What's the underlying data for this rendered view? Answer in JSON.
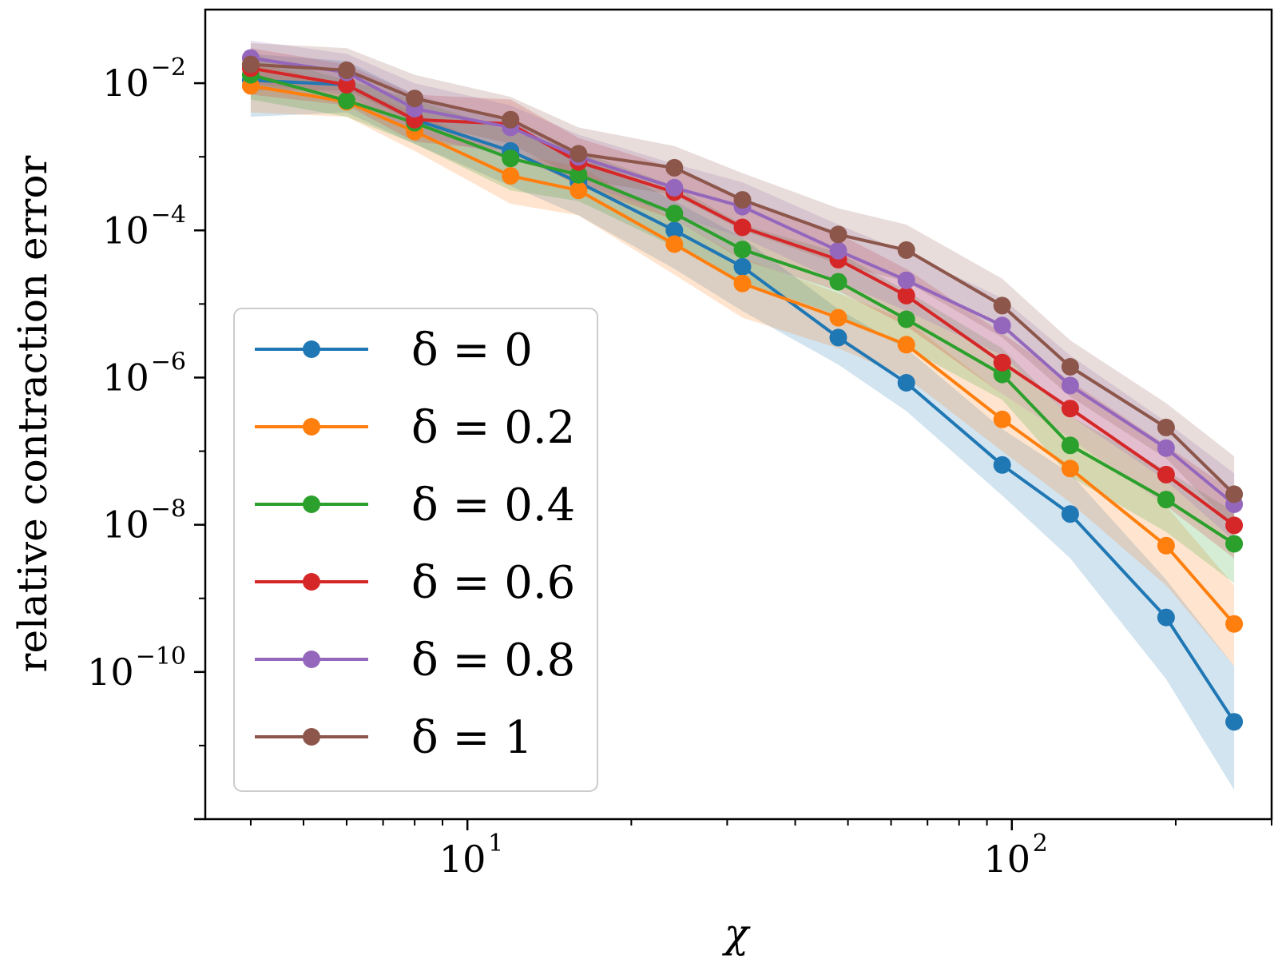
{
  "chart_data": {
    "type": "line",
    "xscale": "log",
    "yscale": "log",
    "xlabel": "χ",
    "ylabel": "relative contraction error",
    "xlim": [
      3.3,
      300
    ],
    "ylim": [
      1e-12,
      0.1
    ],
    "x": [
      4,
      6,
      8,
      12,
      16,
      24,
      32,
      48,
      64,
      96,
      128,
      192,
      256
    ],
    "x_ticks": [
      {
        "value": 10,
        "base": "10",
        "exp": "1"
      },
      {
        "value": 100,
        "base": "10",
        "exp": "2"
      }
    ],
    "y_ticks": [
      {
        "value": 0.01,
        "base": "10",
        "exp": "−2"
      },
      {
        "value": 0.0001,
        "base": "10",
        "exp": "−4"
      },
      {
        "value": 1e-06,
        "base": "10",
        "exp": "−6"
      },
      {
        "value": 1e-08,
        "base": "10",
        "exp": "−8"
      },
      {
        "value": 1e-10,
        "base": "10",
        "exp": "−10"
      }
    ],
    "legend_position": "lower-left",
    "series": [
      {
        "name": "δ = 0",
        "color": "#1f77b4",
        "values": [
          0.011,
          0.0095,
          0.0032,
          0.0012,
          0.00045,
          0.0001,
          3.2e-05,
          3.5e-06,
          8.5e-07,
          6.5e-08,
          1.4e-08,
          5.5e-10,
          2.1e-11
        ],
        "lower": [
          0.0035,
          0.004,
          0.0015,
          0.0004,
          0.00016,
          3e-05,
          8e-06,
          1.5e-06,
          3.5e-07,
          2.5e-08,
          3.5e-09,
          8e-11,
          2.5e-12
        ],
        "upper": [
          0.025,
          0.02,
          0.007,
          0.003,
          0.0012,
          0.00025,
          8e-05,
          8.5e-06,
          2.5e-06,
          2e-07,
          5e-08,
          1.8e-09,
          1.2e-10
        ]
      },
      {
        "name": "δ = 0.2",
        "color": "#ff7f0e",
        "values": [
          0.0092,
          0.0056,
          0.0022,
          0.00055,
          0.00035,
          6.5e-05,
          1.9e-05,
          6.5e-06,
          2.8e-06,
          2.7e-07,
          5.8e-08,
          5.2e-09,
          4.5e-10
        ],
        "lower": [
          0.004,
          0.0035,
          0.0012,
          0.00023,
          0.00016,
          2.5e-05,
          6.5e-06,
          2.5e-06,
          1e-06,
          1e-07,
          2e-08,
          1.5e-09,
          1.2e-10
        ],
        "upper": [
          0.02,
          0.009,
          0.004,
          0.0011,
          0.00075,
          0.00014,
          4.2e-05,
          1.4e-05,
          6e-06,
          6e-07,
          1.5e-07,
          1.8e-08,
          1.5e-09
        ]
      },
      {
        "name": "δ = 0.4",
        "color": "#2ca02c",
        "values": [
          0.013,
          0.0058,
          0.0029,
          0.00095,
          0.00057,
          0.00017,
          5.5e-05,
          2e-05,
          6.2e-06,
          1.1e-06,
          1.2e-07,
          2.2e-08,
          5.5e-09
        ],
        "lower": [
          0.006,
          0.0035,
          0.0015,
          0.00035,
          0.00025,
          6e-05,
          2e-05,
          7e-06,
          2.5e-06,
          5e-07,
          4.5e-08,
          8e-09,
          1.6e-09
        ],
        "upper": [
          0.025,
          0.011,
          0.006,
          0.0022,
          0.0012,
          0.0004,
          0.00012,
          5e-05,
          1.5e-05,
          2.5e-06,
          3e-07,
          5.5e-08,
          1.5e-08
        ]
      },
      {
        "name": "δ = 0.6",
        "color": "#d62728",
        "values": [
          0.016,
          0.0095,
          0.0032,
          0.0028,
          0.00085,
          0.00033,
          0.00011,
          4e-05,
          1.3e-05,
          1.6e-06,
          3.8e-07,
          4.8e-08,
          9.8e-09
        ],
        "lower": [
          0.007,
          0.005,
          0.0016,
          0.0012,
          0.0004,
          0.00014,
          4e-05,
          1.5e-05,
          5e-06,
          6e-07,
          1.5e-07,
          1.8e-08,
          3.5e-09
        ],
        "upper": [
          0.03,
          0.018,
          0.007,
          0.006,
          0.0018,
          0.0007,
          0.00025,
          9e-05,
          3e-05,
          4e-06,
          9e-07,
          1.2e-07,
          2.8e-08
        ]
      },
      {
        "name": "δ = 0.8",
        "color": "#9467bd",
        "values": [
          0.022,
          0.014,
          0.0045,
          0.0025,
          0.001,
          0.00038,
          0.00021,
          5.3e-05,
          2.1e-05,
          5.1e-06,
          7.8e-07,
          1.1e-07,
          1.9e-08
        ],
        "lower": [
          0.01,
          0.007,
          0.002,
          0.001,
          0.00045,
          0.00016,
          8e-05,
          2e-05,
          8e-06,
          2e-06,
          3e-07,
          4e-08,
          6e-09
        ],
        "upper": [
          0.038,
          0.025,
          0.01,
          0.005,
          0.002,
          0.0008,
          0.00045,
          0.00012,
          5e-05,
          1.2e-05,
          2e-06,
          2.5e-07,
          5e-08
        ]
      },
      {
        "name": "δ = 1",
        "color": "#8c564b",
        "values": [
          0.018,
          0.015,
          0.0062,
          0.0032,
          0.0011,
          0.00071,
          0.00026,
          8.8e-05,
          5.4e-05,
          9.5e-06,
          1.4e-06,
          2.1e-07,
          2.6e-08
        ],
        "lower": [
          0.008,
          0.008,
          0.003,
          0.0015,
          0.0005,
          0.0003,
          0.0001,
          3.5e-05,
          2e-05,
          3.5e-06,
          5.5e-07,
          8e-08,
          9e-09
        ],
        "upper": [
          0.035,
          0.03,
          0.013,
          0.0065,
          0.0025,
          0.0014,
          0.0006,
          0.0002,
          0.00012,
          2.2e-05,
          3.2e-06,
          4.5e-07,
          8.5e-08
        ]
      }
    ]
  }
}
